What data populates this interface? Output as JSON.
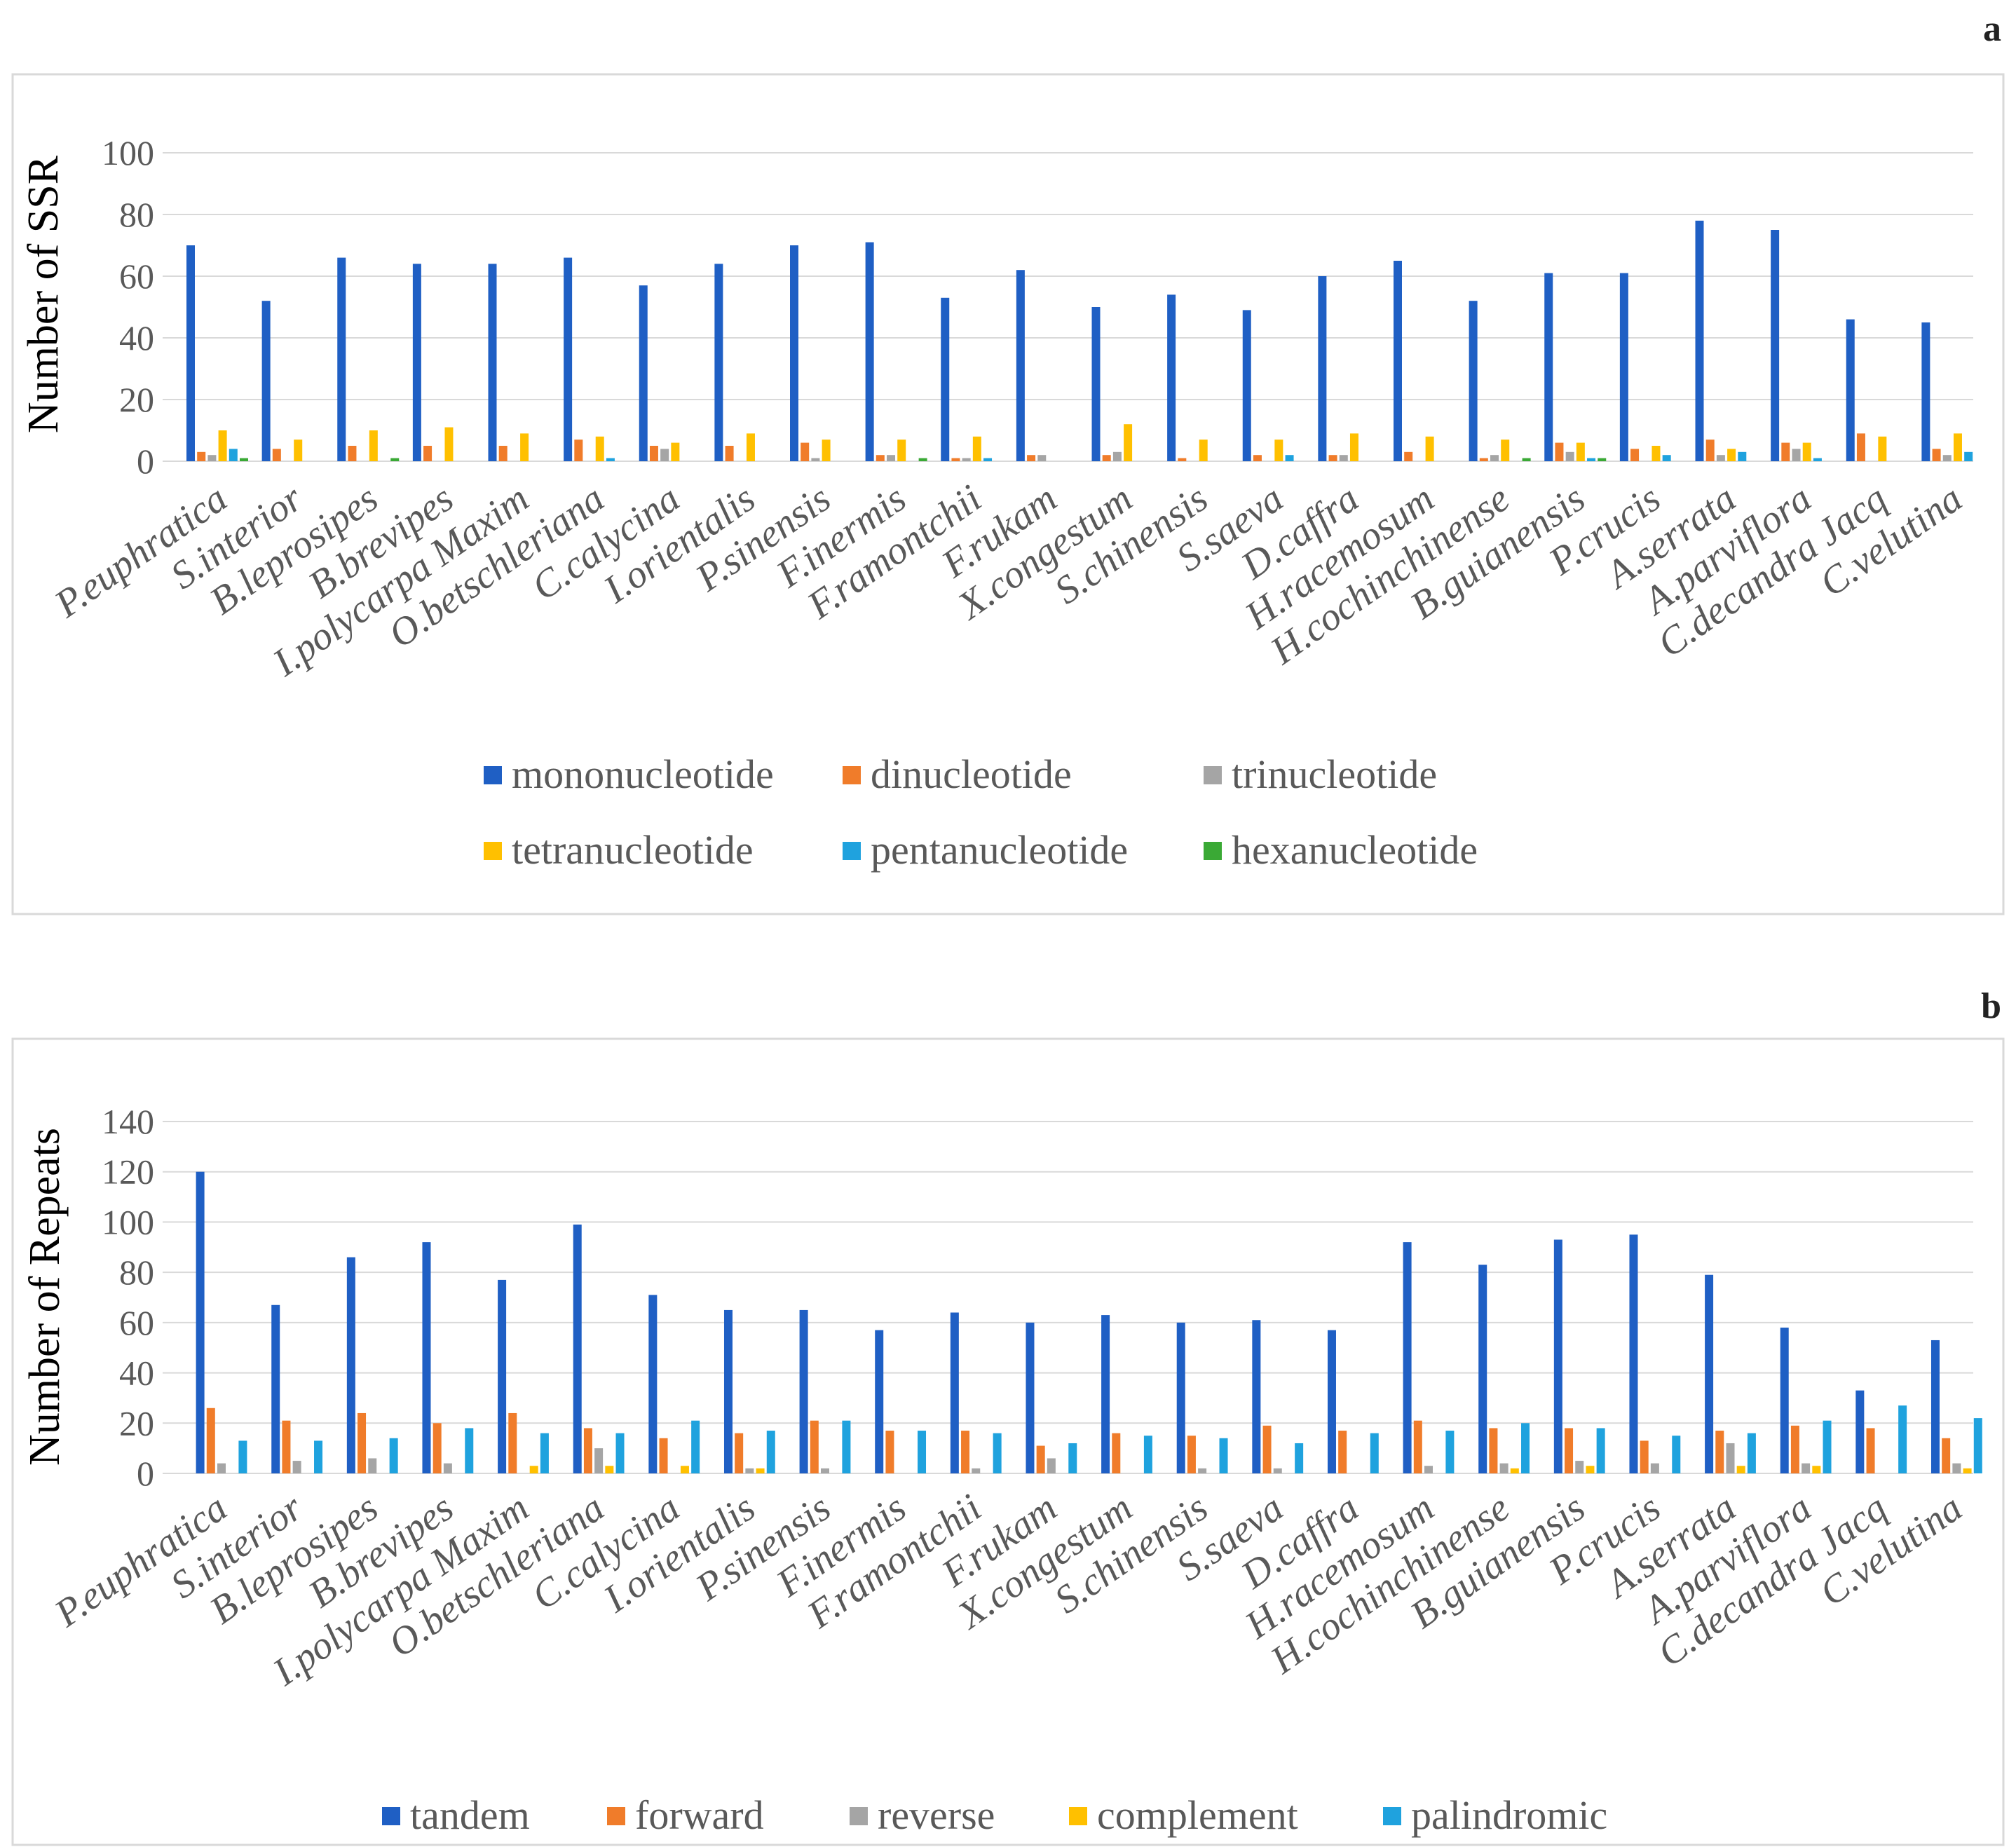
{
  "chart_data": [
    {
      "panel": "a",
      "type": "bar",
      "title": "",
      "xlabel": "",
      "ylabel": "Number of SSR",
      "ylim": [
        0,
        100
      ],
      "yticks": [
        0,
        20,
        40,
        60,
        80,
        100
      ],
      "grid": true,
      "legend_position": "bottom",
      "categories": [
        "P.euphratica",
        "S.interior",
        "B.leprosipes",
        "B.brevipes",
        "I.polycarpa Maxim",
        "O.betschleriana",
        "C.calycina",
        "I.orientalis",
        "P.sinensis",
        "F.inermis",
        "F.ramontchii",
        "F.rukam",
        "X.congestum",
        "S.chinensis",
        "S.saeva",
        "D.caffra",
        "H.racemosum",
        "H.cochinchinense",
        "B.guianensis",
        "P.crucis",
        "A.serrata",
        "A.parviflora",
        "C.decandra Jacq",
        "C.velutina"
      ],
      "series": [
        {
          "name": "mononucleotide",
          "color": "#1f5fc4",
          "values": [
            70,
            52,
            66,
            64,
            64,
            66,
            57,
            64,
            70,
            71,
            53,
            62,
            50,
            54,
            49,
            60,
            65,
            52,
            61,
            61,
            78,
            75,
            46,
            45
          ]
        },
        {
          "name": "dinucleotide",
          "color": "#f07c2a",
          "values": [
            3,
            4,
            5,
            5,
            5,
            7,
            5,
            5,
            6,
            2,
            1,
            2,
            2,
            1,
            2,
            2,
            3,
            1,
            6,
            4,
            7,
            6,
            9,
            4
          ]
        },
        {
          "name": "trinucleotide",
          "color": "#a5a5a5",
          "values": [
            2,
            0,
            0,
            0,
            0,
            0,
            4,
            0,
            1,
            2,
            1,
            2,
            3,
            0,
            0,
            2,
            0,
            2,
            3,
            0,
            2,
            4,
            0,
            2
          ]
        },
        {
          "name": "tetranucleotide",
          "color": "#ffc000",
          "values": [
            10,
            7,
            10,
            11,
            9,
            8,
            6,
            9,
            7,
            7,
            8,
            0,
            12,
            7,
            7,
            9,
            8,
            7,
            6,
            5,
            4,
            6,
            8,
            9
          ]
        },
        {
          "name": "pentanucleotide",
          "color": "#1fa2de",
          "values": [
            4,
            0,
            0,
            0,
            0,
            1,
            0,
            0,
            0,
            0,
            1,
            0,
            0,
            0,
            2,
            0,
            0,
            0,
            1,
            2,
            3,
            1,
            0,
            3
          ]
        },
        {
          "name": "hexanucleotide",
          "color": "#3aa935",
          "values": [
            1,
            0,
            1,
            0,
            0,
            0,
            0,
            0,
            0,
            1,
            0,
            0,
            0,
            0,
            0,
            0,
            0,
            1,
            1,
            0,
            0,
            0,
            0,
            0
          ]
        }
      ]
    },
    {
      "panel": "b",
      "type": "bar",
      "title": "",
      "xlabel": "",
      "ylabel": "Number of  Repeats",
      "ylim": [
        0,
        140
      ],
      "yticks": [
        0,
        20,
        40,
        60,
        80,
        100,
        120,
        140
      ],
      "grid": true,
      "legend_position": "bottom",
      "categories": [
        "P.euphratica",
        "S.interior",
        "B.leprosipes",
        "B.brevipes",
        "I.polycarpa Maxim",
        "O.betschleriana",
        "C.calycina",
        "I.orientalis",
        "P.sinensis",
        "F.inermis",
        "F.ramontchii",
        "F.rukam",
        "X.congestum",
        "S.chinensis",
        "S.saeva",
        "D.caffra",
        "H.racemosum",
        "H.cochinchinense",
        "B.guianensis",
        "P.crucis",
        "A.serrata",
        "A.parviflora",
        "C.decandra Jacq",
        "C.velutina"
      ],
      "series": [
        {
          "name": "tandem",
          "color": "#1f5fc4",
          "values": [
            120,
            67,
            86,
            92,
            77,
            99,
            71,
            65,
            65,
            57,
            64,
            60,
            63,
            60,
            61,
            57,
            92,
            83,
            93,
            95,
            79,
            58,
            33,
            53
          ]
        },
        {
          "name": "forward",
          "color": "#f07c2a",
          "values": [
            26,
            21,
            24,
            20,
            24,
            18,
            14,
            16,
            21,
            17,
            17,
            11,
            16,
            15,
            19,
            17,
            21,
            18,
            18,
            13,
            17,
            19,
            18,
            14
          ]
        },
        {
          "name": "reverse",
          "color": "#a5a5a5",
          "values": [
            4,
            5,
            6,
            4,
            0,
            10,
            0,
            2,
            2,
            0,
            2,
            6,
            0,
            2,
            2,
            0,
            3,
            4,
            5,
            4,
            12,
            4,
            0,
            4
          ]
        },
        {
          "name": "complement",
          "color": "#ffc000",
          "values": [
            0,
            0,
            0,
            0,
            3,
            3,
            3,
            2,
            0,
            0,
            0,
            0,
            0,
            0,
            0,
            0,
            0,
            2,
            3,
            0,
            3,
            3,
            0,
            2
          ]
        },
        {
          "name": "palindromic",
          "color": "#1fa2de",
          "values": [
            13,
            13,
            14,
            18,
            16,
            16,
            21,
            17,
            21,
            17,
            16,
            12,
            15,
            14,
            12,
            16,
            17,
            20,
            18,
            15,
            16,
            21,
            27,
            22
          ]
        }
      ]
    }
  ]
}
